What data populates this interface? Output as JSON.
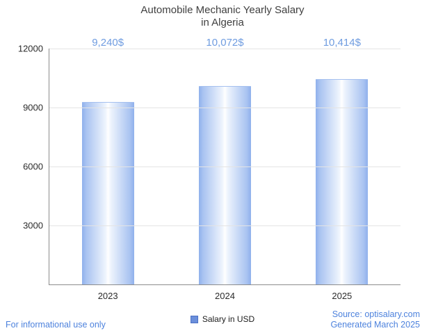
{
  "chart_data": {
    "type": "bar",
    "title": "Automobile Mechanic Yearly Salary in Algeria",
    "title_lines": [
      "Automobile Mechanic Yearly Salary",
      "in Algeria"
    ],
    "categories": [
      "2023",
      "2024",
      "2025"
    ],
    "values": [
      9240,
      10072,
      10414
    ],
    "value_labels": [
      "9,240$",
      "10,072$",
      "10,414$"
    ],
    "series": [
      {
        "name": "Salary in USD",
        "values": [
          9240,
          10072,
          10414
        ]
      }
    ],
    "xlabel": "",
    "ylabel": "",
    "ylim": [
      0,
      12000
    ],
    "yticks": [
      3000,
      6000,
      9000,
      12000
    ],
    "grid": true,
    "legend_position": "bottom",
    "colors": {
      "bar_edge": "#8fb0ec",
      "bar_center": "#ffffff",
      "value_label": "#6f9ce0",
      "axis": "#8c8c8c",
      "gridline": "#e4e4e4",
      "footer_link": "#4d82dd",
      "legend_swatch": "#6b8fdb"
    }
  },
  "legend": {
    "label": "Salary in USD"
  },
  "footer": {
    "left": "For informational use only",
    "source": "Source: optisalary.com",
    "generated": "Generated March 2025"
  }
}
